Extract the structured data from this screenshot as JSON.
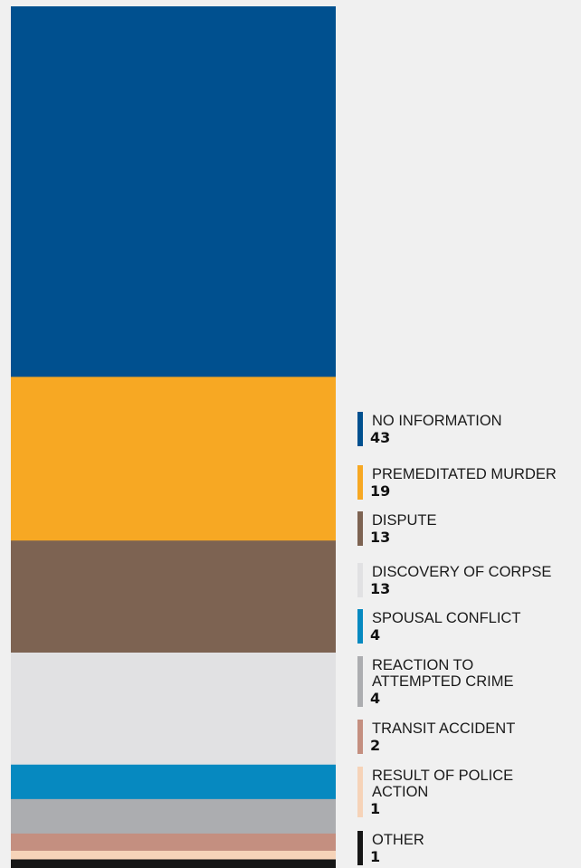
{
  "chart_data": {
    "type": "bar",
    "layout": "stacked-single-column",
    "title": "",
    "total": 100,
    "series": [
      {
        "label": "NO INFORMATION",
        "value": 43,
        "color": "#00508f",
        "value_text": "43"
      },
      {
        "label": "PREMEDITATED MURDER",
        "value": 19,
        "color": "#f7a823",
        "value_text": "19"
      },
      {
        "label": "DISPUTE",
        "value": 13,
        "color": "#7d6352",
        "value_text": "13"
      },
      {
        "label": "DISCOVERY OF CORPSE",
        "value": 13,
        "color": "#e1e1e3",
        "value_text": "13"
      },
      {
        "label": "SPOUSAL CONFLICT",
        "value": 4,
        "color": "#0689c0",
        "value_text": "4"
      },
      {
        "label": "REACTION TO ATTEMPTED CRIME",
        "value": 4,
        "color": "#acadb0",
        "value_text": "4"
      },
      {
        "label": "TRANSIT ACCIDENT",
        "value": 2,
        "color": "#c48f80",
        "value_text": "2"
      },
      {
        "label": "RESULT OF POLICE ACTION",
        "value": 1,
        "color": "#f6d3b8",
        "value_text": "1"
      },
      {
        "label": "OTHER",
        "value": 1,
        "color": "#161616",
        "value_text": "1"
      }
    ]
  }
}
